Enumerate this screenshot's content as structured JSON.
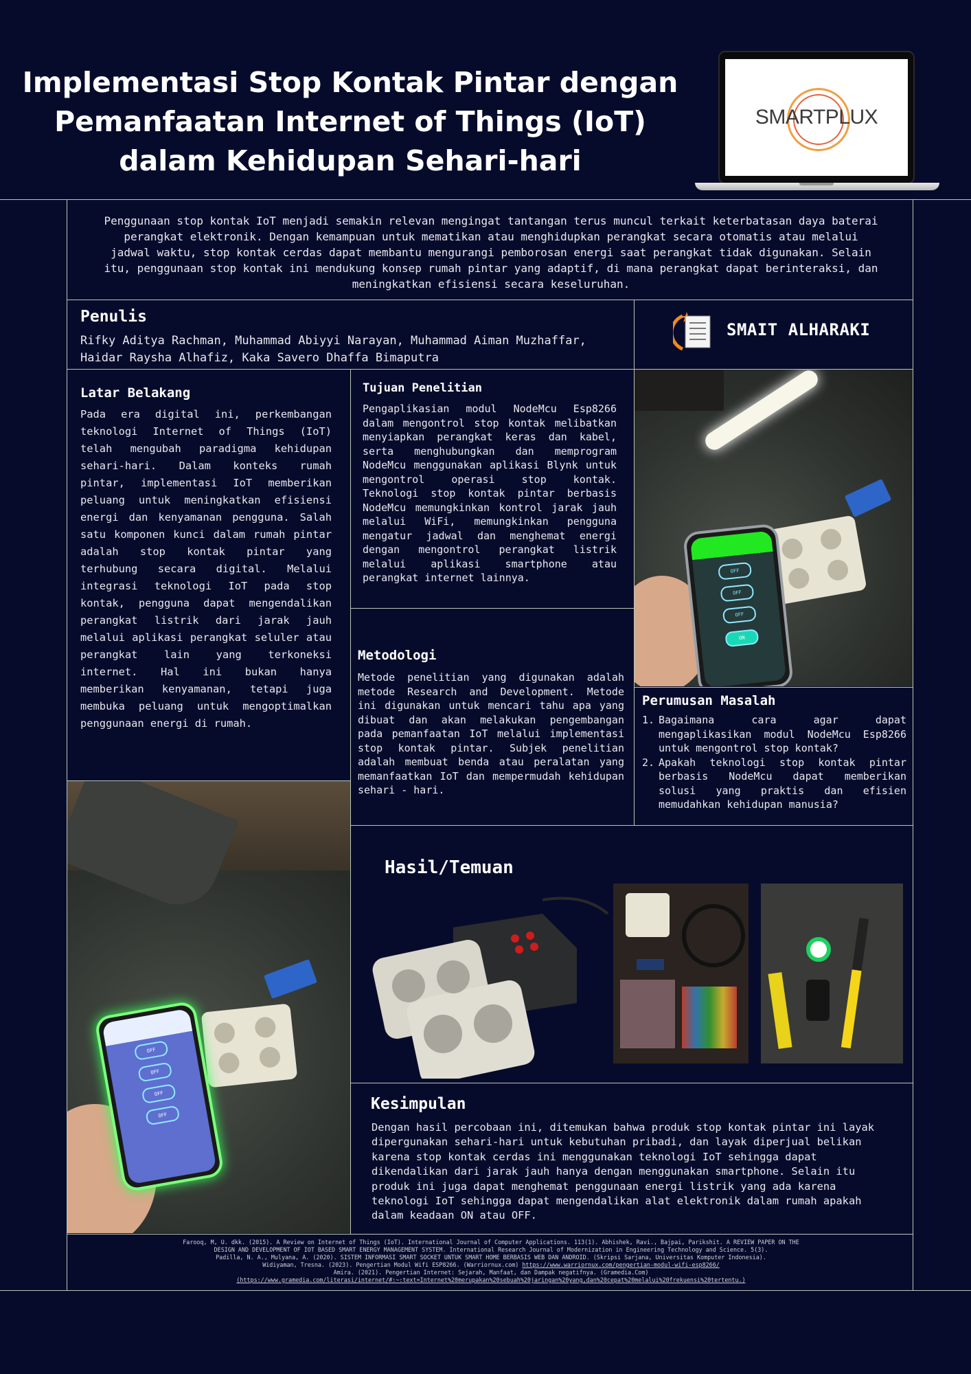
{
  "title": "Implementasi Stop Kontak Pintar dengan Pemanfaatan Internet of Things (IoT) dalam Kehidupan Sehari-hari",
  "logo": {
    "text": "SMARTPLUX",
    "icon": "laptop-logo"
  },
  "intro": "Penggunaan stop kontak IoT menjadi semakin relevan mengingat tantangan terus muncul terkait keterbatasan daya baterai perangkat elektronik. Dengan kemampuan untuk mematikan atau menghidupkan perangkat secara otomatis atau melalui jadwal waktu, stop kontak cerdas dapat membantu mengurangi pemborosan energi saat perangkat tidak digunakan. Selain itu, penggunaan stop kontak ini mendukung konsep rumah pintar yang adaptif, di mana perangkat dapat berinteraksi, dan meningkatkan efisiensi secara keseluruhan.",
  "penulis": {
    "heading": "Penulis",
    "names": "Rifky Aditya Rachman, Muhammad Abiyyi Narayan, Muhammad Aiman Muzhaffar, Haidar Raysha Alhafiz, Kaka Savero Dhaffa Bimaputra"
  },
  "school": {
    "name": "SMAIT ALHARAKI",
    "icon": "school-logo-icon"
  },
  "latar": {
    "heading": "Latar Belakang",
    "text": "Pada era digital ini, perkembangan teknologi Internet of Things (IoT) telah mengubah paradigma kehidupan sehari-hari. Dalam konteks rumah pintar, implementasi IoT memberikan peluang untuk meningkatkan efisiensi energi dan kenyamanan pengguna. Salah satu komponen kunci dalam rumah pintar adalah stop kontak pintar yang terhubung secara digital. Melalui integrasi teknologi IoT pada stop kontak, pengguna dapat mengendalikan perangkat listrik dari jarak jauh melalui aplikasi perangkat seluler atau perangkat lain yang terkoneksi internet. Hal ini bukan hanya memberikan kenyamanan, tetapi juga membuka peluang untuk mengoptimalkan penggunaan energi di rumah."
  },
  "tujuan": {
    "heading": "Tujuan Penelitian",
    "text": "Pengaplikasian modul NodeMcu Esp8266 dalam mengontrol stop kontak melibatkan menyiapkan perangkat keras dan kabel, serta menghubungkan dan memprogram NodeMcu menggunakan aplikasi Blynk untuk mengontrol operasi stop kontak. Teknologi stop kontak pintar berbasis NodeMcu memungkinkan kontrol jarak jauh melalui WiFi, memungkinkan pengguna mengatur jadwal dan menghemat energi dengan mengontrol perangkat listrik melalui aplikasi smartphone atau perangkat internet lainnya."
  },
  "metodologi": {
    "heading": "Metodologi",
    "text": "Metode penelitian yang digunakan adalah metode Research and Development. Metode ini digunakan untuk mencari tahu apa yang dibuat dan akan melakukan pengembangan pada pemanfaatan IoT melalui implementasi stop kontak pintar. Subjek penelitian adalah membuat benda atau peralatan yang memanfaatkan IoT dan mempermudah kehidupan sehari - hari."
  },
  "perumusan": {
    "heading": "Perumusan Masalah",
    "items": [
      "Bagaimana cara agar dapat mengaplikasikan modul NodeMcu Esp8266 untuk mengontrol stop kontak?",
      "Apakah teknologi stop kontak pintar berbasis NodeMcu dapat memberikan solusi yang praktis dan efisien memudahkan kehidupan manusia?"
    ]
  },
  "hasil": {
    "heading": "Hasil/Temuan"
  },
  "phone_buttons": [
    "OFF",
    "OFF",
    "OFF",
    "ON"
  ],
  "phone_buttons2": [
    "OFF",
    "OFF",
    "OFF",
    "OFF"
  ],
  "kesimpulan": {
    "heading": "Kesimpulan",
    "text": "Dengan hasil percobaan ini, ditemukan bahwa produk stop kontak pintar ini layak dipergunakan sehari-hari untuk kebutuhan pribadi, dan layak diperjual belikan karena stop kontak cerdas ini menggunakan teknologi IoT sehingga dapat dikendalikan dari jarak jauh hanya dengan menggunakan smartphone. Selain itu produk ini juga dapat menghemat penggunaan energi listrik yang ada karena teknologi IoT sehingga dapat mengendalikan alat elektronik dalam rumah apakah dalam keadaan ON atau OFF."
  },
  "references": {
    "line1": "Farooq, M, U. dkk. (2015). A Review on Internet of Things (IoT). International Journal of Computer Applications. 113(1). Abhishek, Ravi., Bajpai, Parikshit. A REVIEW PAPER ON THE",
    "line2": "DESIGN AND DEVELOPMENT OF IOT BASED SMART ENERGY MANAGEMENT SYSTEM. International Research Journal of Modernization in Engineering Technology and Science. 5(3).",
    "line3": "Padilla, N. A., Mulyana, A. (2020). SISTEM INFORMASI SMART SOCKET UNTUK SMART HOME BERBASIS WEB DAN ANDROID. (Skripsi Sarjana, Universitas Komputer Indonesia).",
    "line4_text": "Widiyaman, Tresna. (2023). Pengertian Modul Wifi ESP8266. (Warriornux.com) ",
    "line4_link": "https://www.warriornux.com/pengertian-modul-wifi-esp8266/",
    "line5": "Amira. (2021). Pengertian Internet: Sejarah, Manfaat, dan Dampak negatifnya. (Gramedia.Com)",
    "line6": "(https://www.gramedia.com/literasi/internet/#:~:text=Internet%20merupakan%20sebuah%20jaringan%20yang,dan%20cepat%20melalui%20frekuensi%20tertentu.)"
  },
  "colors": {
    "background": "#070b2b",
    "rule": "#b9c6b8",
    "phone_green": "#22e822",
    "relay_blue": "#2d66c8"
  }
}
